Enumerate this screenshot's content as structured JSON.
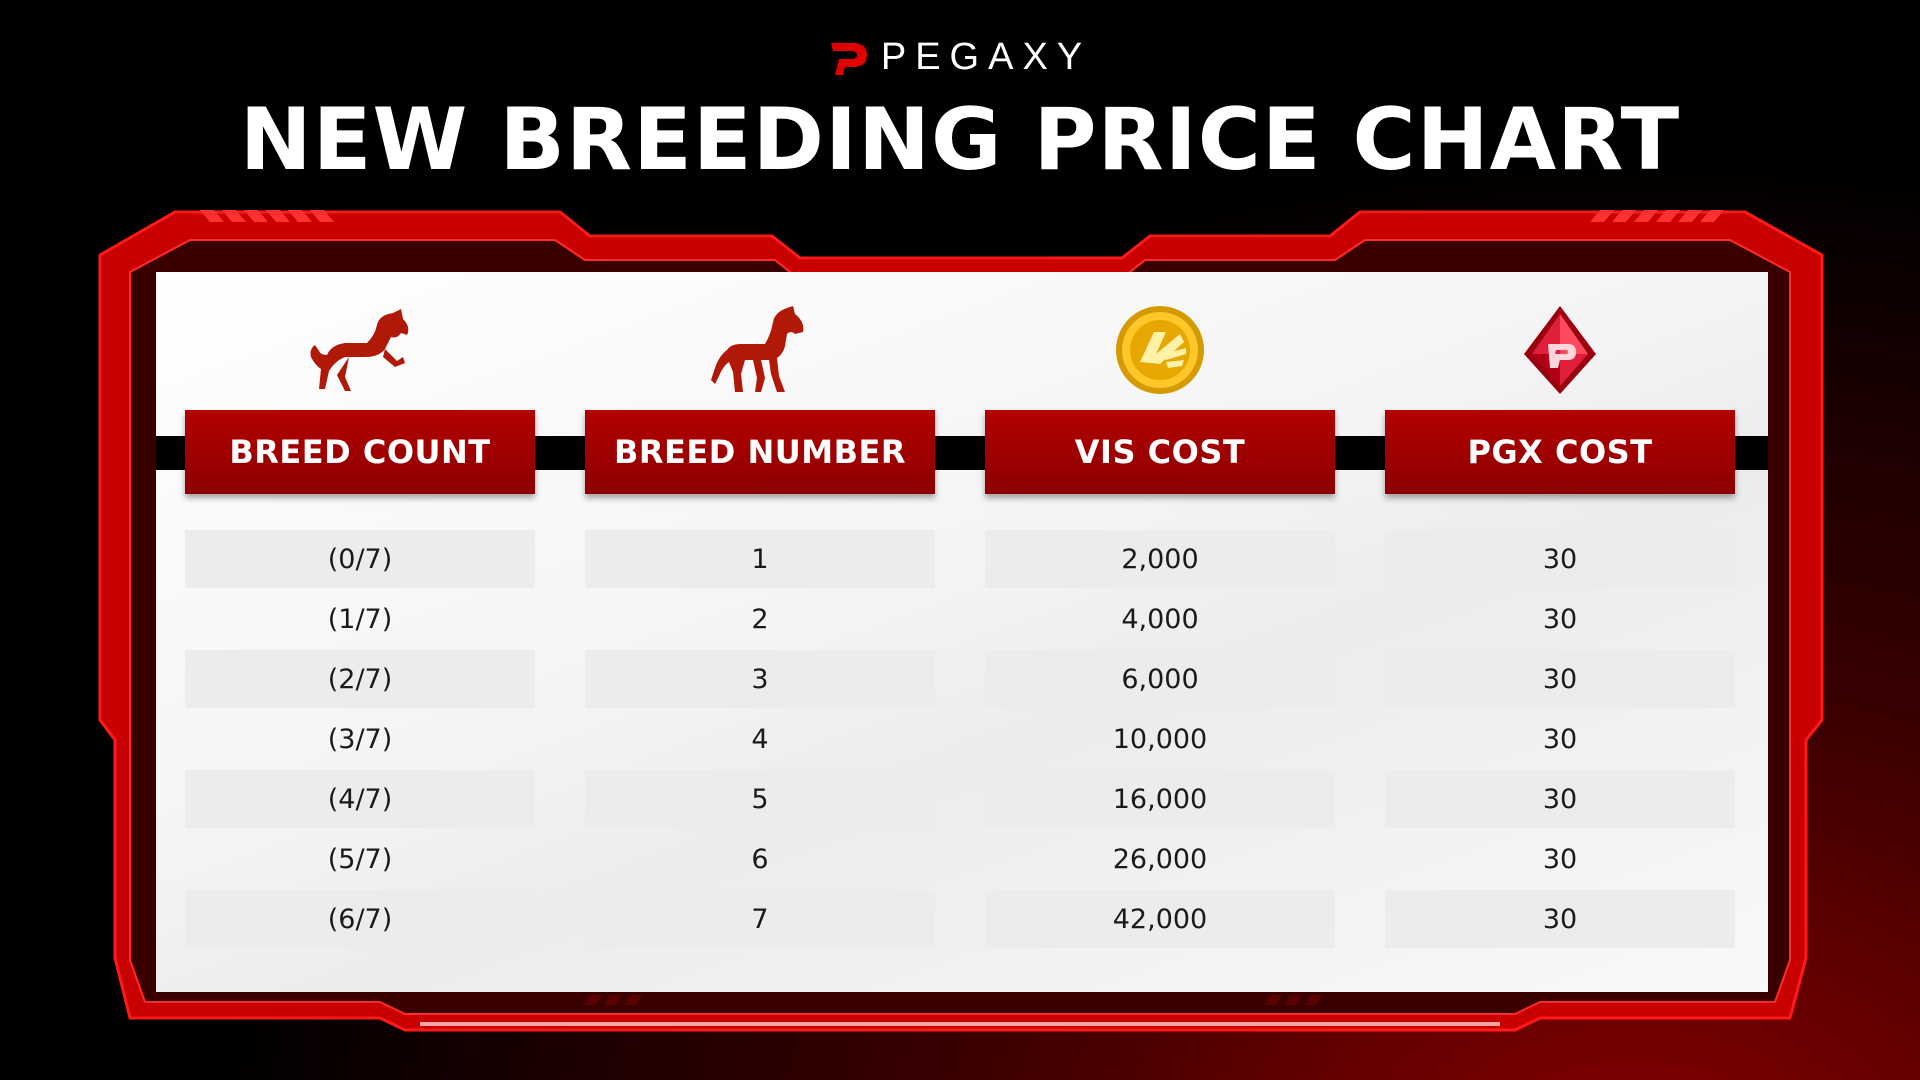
{
  "brand": {
    "name": "PEGAXY",
    "logo_icon": "pegaxy-logo-icon"
  },
  "title": "NEW BREEDING PRICE CHART",
  "colors": {
    "accent": "#e00000",
    "header": "#9e0000",
    "background": "#000000"
  },
  "chart_data": {
    "type": "table",
    "columns": [
      {
        "label": "BREED COUNT",
        "icon": "rearing-horse-icon"
      },
      {
        "label": "BREED NUMBER",
        "icon": "standing-horse-icon"
      },
      {
        "label": "VIS COST",
        "icon": "vis-coin-icon"
      },
      {
        "label": "PGX COST",
        "icon": "pgx-gem-icon"
      }
    ],
    "rows": [
      [
        "(0/7)",
        "1",
        "2,000",
        "30"
      ],
      [
        "(1/7)",
        "2",
        "4,000",
        "30"
      ],
      [
        "(2/7)",
        "3",
        "6,000",
        "30"
      ],
      [
        "(3/7)",
        "4",
        "10,000",
        "30"
      ],
      [
        "(4/7)",
        "5",
        "16,000",
        "30"
      ],
      [
        "(5/7)",
        "6",
        "26,000",
        "30"
      ],
      [
        "(6/7)",
        "7",
        "42,000",
        "30"
      ]
    ]
  }
}
